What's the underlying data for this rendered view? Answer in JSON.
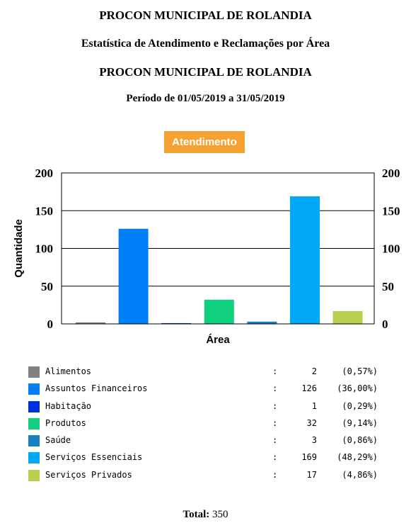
{
  "header": {
    "title": "PROCON MUNICIPAL DE ROLANDIA",
    "subtitle": "Estatística de Atendimento e Reclamações por Área",
    "title2": "PROCON MUNICIPAL DE ROLANDIA",
    "period": "Período de 01/05/2019 a 31/05/2019"
  },
  "badge_label": "Atendimento",
  "chart_data": {
    "type": "bar",
    "categories": [
      "Alimentos",
      "Assuntos Financeiros",
      "Habitação",
      "Produtos",
      "Saúde",
      "Serviços Essenciais",
      "Serviços Privados"
    ],
    "values": [
      2,
      126,
      1,
      32,
      3,
      169,
      17
    ],
    "colors": [
      "#808080",
      "#0080f8",
      "#0030d8",
      "#10d080",
      "#1880c0",
      "#00a8f8",
      "#b8d050"
    ],
    "xlabel": "Área",
    "ylabel": "Quantidade",
    "ylim": [
      0,
      200
    ],
    "yticks": [
      "0",
      "50",
      "100",
      "150",
      "200"
    ],
    "grid": true
  },
  "legend": [
    {
      "name": "Alimentos",
      "sep": ":",
      "value": "2",
      "pct": "(0,57%)"
    },
    {
      "name": "Assuntos Financeiros",
      "sep": ":",
      "value": "126",
      "pct": "(36,00%)"
    },
    {
      "name": "Habitação",
      "sep": ":",
      "value": "1",
      "pct": "(0,29%)"
    },
    {
      "name": "Produtos",
      "sep": ":",
      "value": "32",
      "pct": "(9,14%)"
    },
    {
      "name": "Saúde",
      "sep": ":",
      "value": "3",
      "pct": "(0,86%)"
    },
    {
      "name": "Serviços Essenciais",
      "sep": ":",
      "value": "169",
      "pct": "(48,29%)"
    },
    {
      "name": "Serviços Privados",
      "sep": ":",
      "value": "17",
      "pct": "(4,86%)"
    }
  ],
  "total": {
    "label": "Total:",
    "value": "350"
  }
}
